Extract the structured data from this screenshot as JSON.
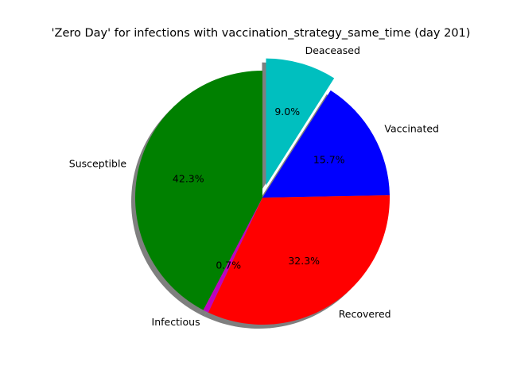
{
  "chart_data": {
    "type": "pie",
    "title": "'Zero Day' for infections with vaccination_strategy_same_time (day 201)",
    "slices": [
      {
        "label": "Deaceased",
        "value": 9.0,
        "pct_label": "9.0%",
        "color": "#00bfbf",
        "explode": true
      },
      {
        "label": "Vaccinated",
        "value": 15.7,
        "pct_label": "15.7%",
        "color": "#0000ff",
        "explode": false
      },
      {
        "label": "Recovered",
        "value": 32.3,
        "pct_label": "32.3%",
        "color": "#ff0000",
        "explode": false
      },
      {
        "label": "Infectious",
        "value": 0.7,
        "pct_label": "0.7%",
        "color": "#bf00bf",
        "explode": false
      },
      {
        "label": "Susceptible",
        "value": 42.3,
        "pct_label": "42.3%",
        "color": "#008000",
        "explode": false
      }
    ],
    "start_angle_deg": 90,
    "direction": "clockwise",
    "shadow": true,
    "legend": "none"
  }
}
